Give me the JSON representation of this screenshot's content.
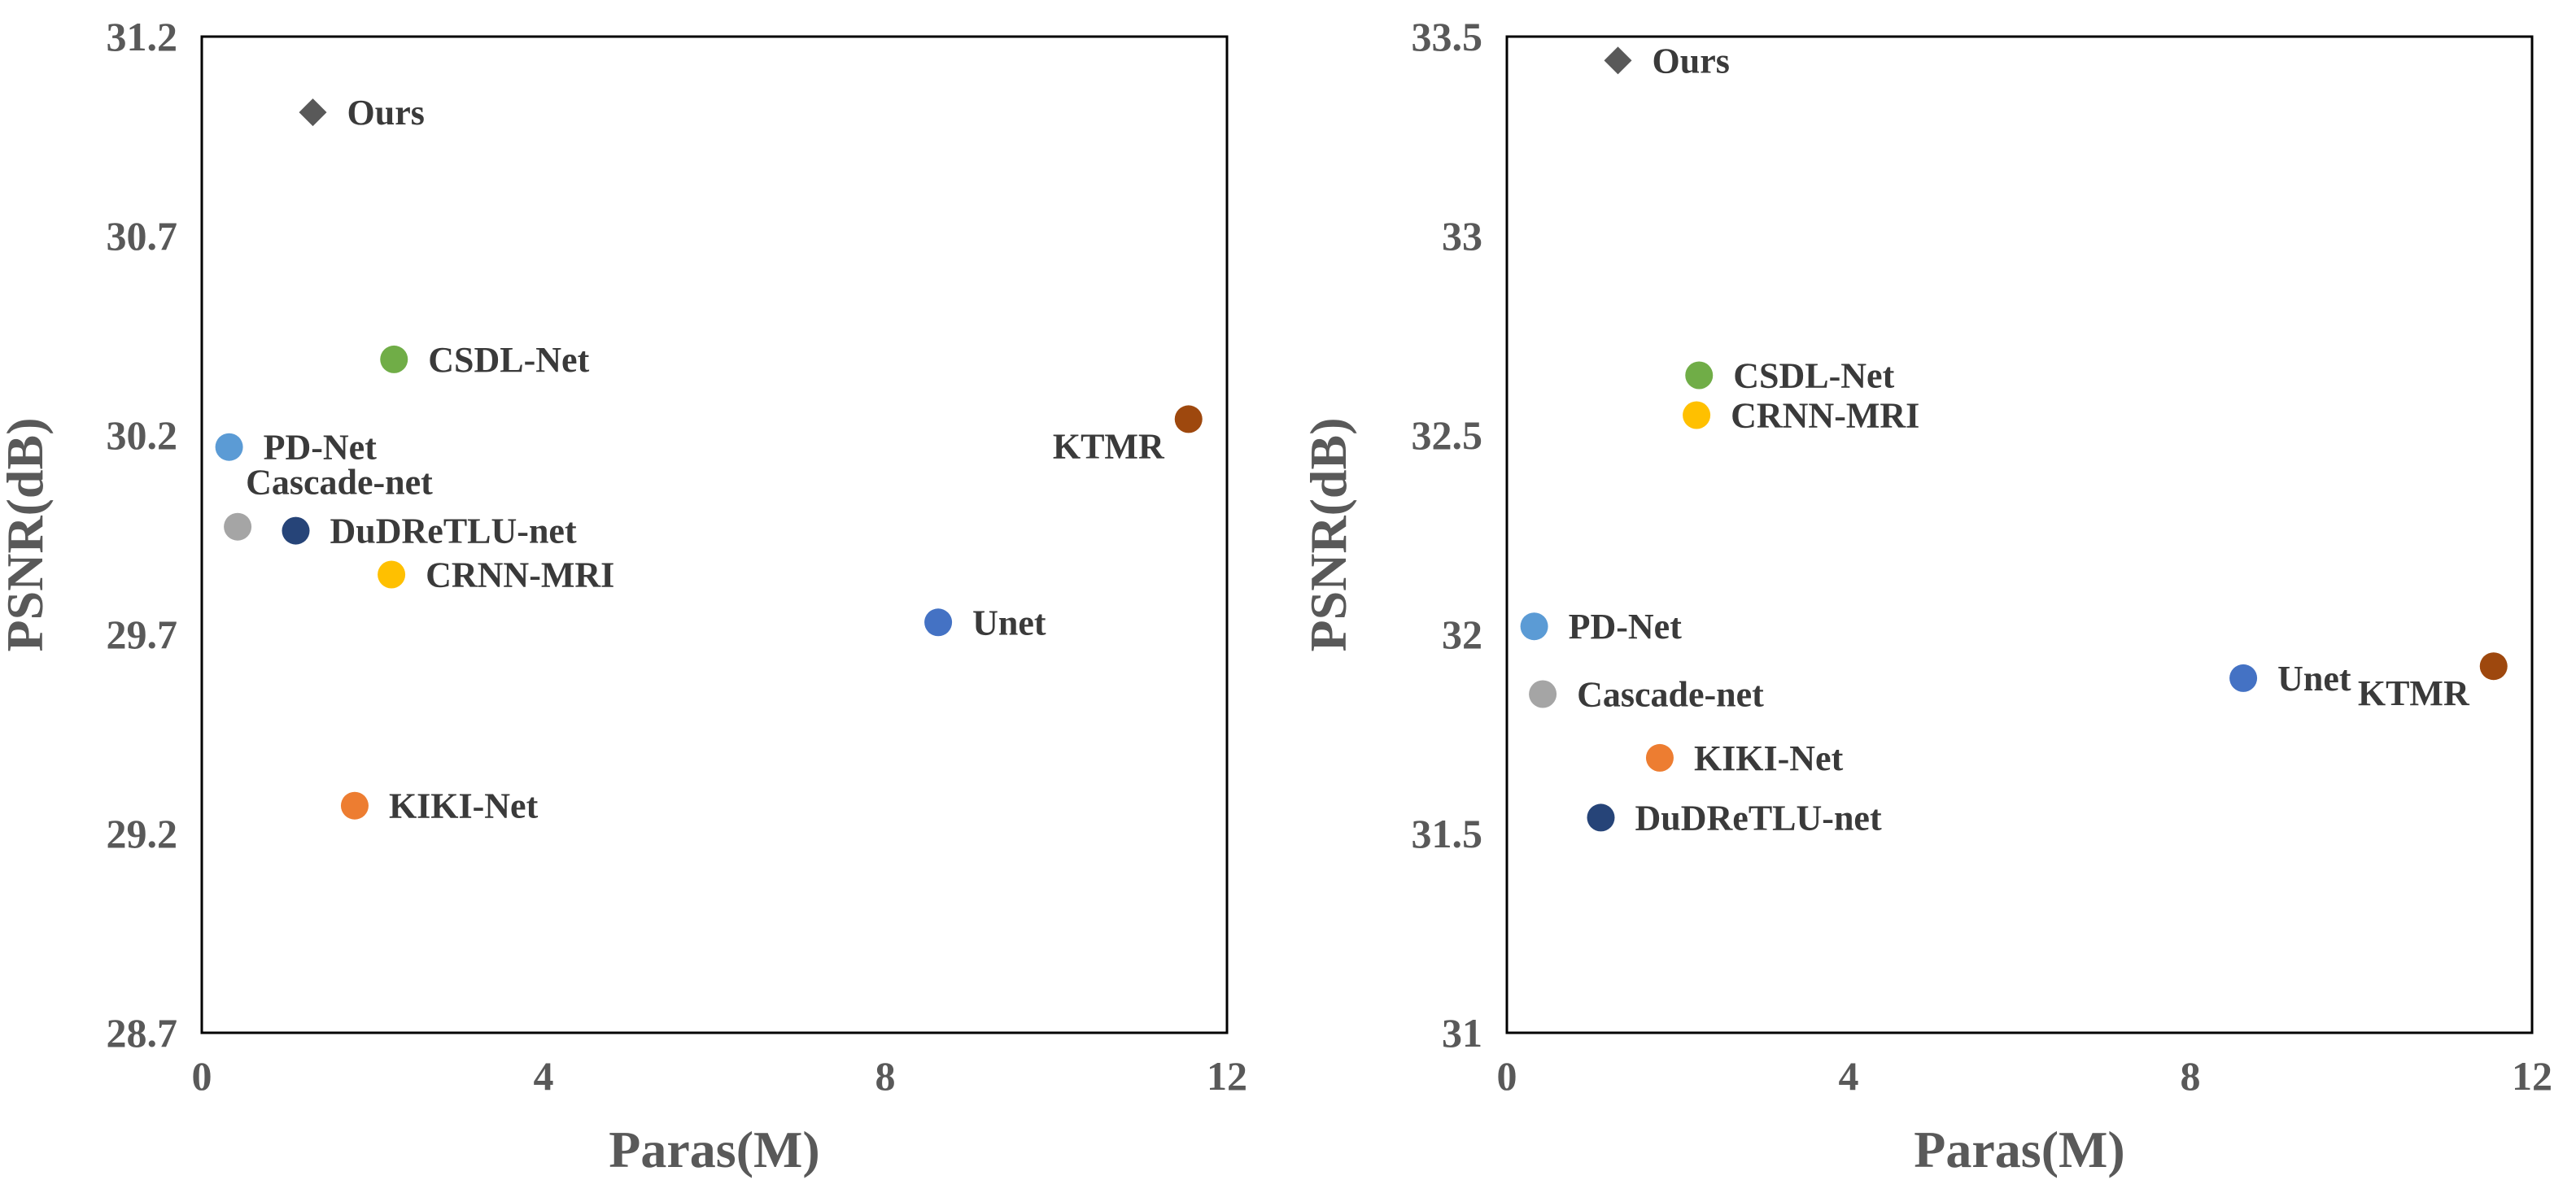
{
  "chart_data": [
    {
      "type": "scatter",
      "xlabel": "Paras(M)",
      "ylabel": "PSNR(dB)",
      "xlim": [
        0,
        12
      ],
      "ylim": [
        28.7,
        31.2
      ],
      "xticks": [
        0,
        4,
        8,
        12
      ],
      "yticks": [
        28.7,
        29.2,
        29.7,
        30.2,
        30.7,
        31.2
      ],
      "xtick_labels": [
        "0",
        "4",
        "8",
        "12"
      ],
      "ytick_labels": [
        "28.7",
        "29.2",
        "29.7",
        "30.2",
        "30.7",
        "31.2"
      ],
      "grid": false,
      "points": [
        {
          "name": "Ours",
          "x": 1.3,
          "y": 31.01,
          "color": "#595959",
          "marker": "diamond",
          "anchor": "right"
        },
        {
          "name": "CSDL-Net",
          "x": 2.25,
          "y": 30.39,
          "color": "#70ad47",
          "marker": "circle",
          "anchor": "right"
        },
        {
          "name": "KTMR",
          "x": 11.55,
          "y": 30.24,
          "color": "#9e480e",
          "marker": "circle",
          "anchor": "below-left"
        },
        {
          "name": "PD-Net",
          "x": 0.32,
          "y": 30.17,
          "color": "#5b9bd5",
          "marker": "circle",
          "anchor": "right"
        },
        {
          "name": "Cascade-net",
          "x": 0.42,
          "y": 29.97,
          "color": "#a5a5a5",
          "marker": "circle",
          "anchor": "above-right"
        },
        {
          "name": "DuDReTLU-net",
          "x": 1.1,
          "y": 29.96,
          "color": "#264478",
          "marker": "circle",
          "anchor": "right"
        },
        {
          "name": "CRNN-MRI",
          "x": 2.22,
          "y": 29.85,
          "color": "#ffc000",
          "marker": "circle",
          "anchor": "right"
        },
        {
          "name": "Unet",
          "x": 8.62,
          "y": 29.73,
          "color": "#4472c4",
          "marker": "circle",
          "anchor": "right"
        },
        {
          "name": "KIKI-Net",
          "x": 1.79,
          "y": 29.27,
          "color": "#ed7d31",
          "marker": "circle",
          "anchor": "right"
        }
      ]
    },
    {
      "type": "scatter",
      "xlabel": "Paras(M)",
      "ylabel": "PSNR(dB)",
      "xlim": [
        0,
        12
      ],
      "ylim": [
        31,
        33.5
      ],
      "xticks": [
        0,
        4,
        8,
        12
      ],
      "yticks": [
        31,
        31.5,
        32,
        32.5,
        33,
        33.5
      ],
      "xtick_labels": [
        "0",
        "4",
        "8",
        "12"
      ],
      "ytick_labels": [
        "31",
        "31.5",
        "32",
        "32.5",
        "33",
        "33.5"
      ],
      "grid": false,
      "points": [
        {
          "name": "Ours",
          "x": 1.3,
          "y": 33.44,
          "color": "#595959",
          "marker": "diamond",
          "anchor": "right"
        },
        {
          "name": "CSDL-Net",
          "x": 2.25,
          "y": 32.65,
          "color": "#70ad47",
          "marker": "circle",
          "anchor": "right"
        },
        {
          "name": "CRNN-MRI",
          "x": 2.22,
          "y": 32.55,
          "color": "#ffc000",
          "marker": "circle",
          "anchor": "right"
        },
        {
          "name": "PD-Net",
          "x": 0.32,
          "y": 32.02,
          "color": "#5b9bd5",
          "marker": "circle",
          "anchor": "right"
        },
        {
          "name": "Cascade-net",
          "x": 0.42,
          "y": 31.85,
          "color": "#a5a5a5",
          "marker": "circle",
          "anchor": "right"
        },
        {
          "name": "Unet",
          "x": 8.62,
          "y": 31.89,
          "color": "#4472c4",
          "marker": "circle",
          "anchor": "right"
        },
        {
          "name": "KTMR",
          "x": 11.55,
          "y": 31.92,
          "color": "#9e480e",
          "marker": "circle",
          "anchor": "below-left"
        },
        {
          "name": "KIKI-Net",
          "x": 1.79,
          "y": 31.69,
          "color": "#ed7d31",
          "marker": "circle",
          "anchor": "right"
        },
        {
          "name": "DuDReTLU-net",
          "x": 1.1,
          "y": 31.54,
          "color": "#264478",
          "marker": "circle",
          "anchor": "right"
        }
      ]
    }
  ]
}
